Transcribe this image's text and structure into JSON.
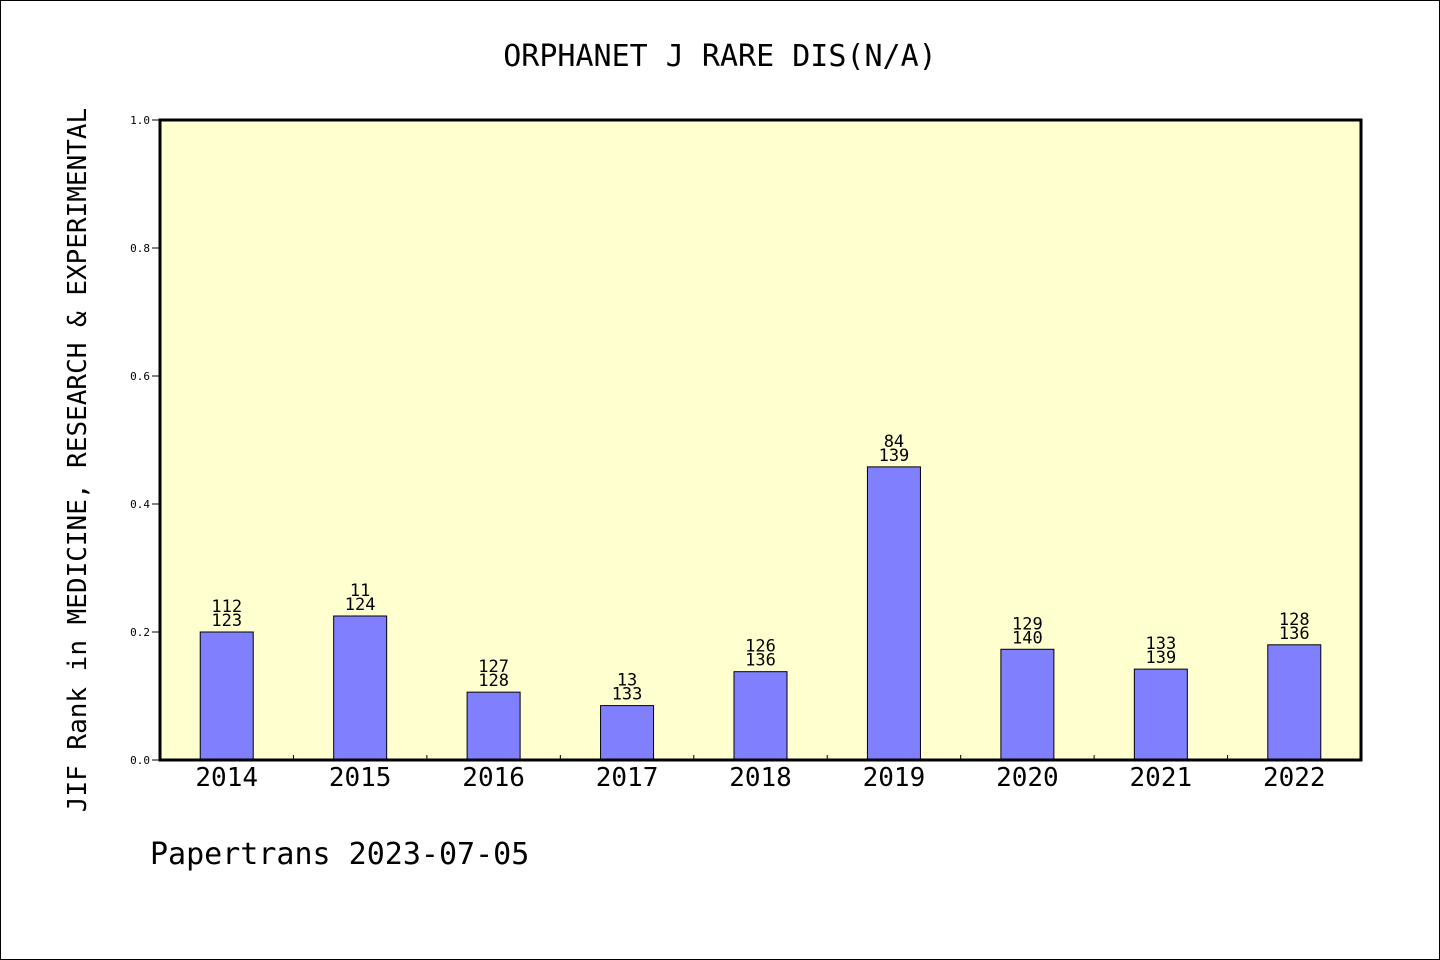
{
  "chart_data": {
    "type": "bar",
    "title": "ORPHANET J RARE DIS(N/A)",
    "ylabel": "JIF Rank in MEDICINE, RESEARCH & EXPERIMENTAL",
    "xlabel": "",
    "categories": [
      "2014",
      "2015",
      "2016",
      "2017",
      "2018",
      "2019",
      "2020",
      "2021",
      "2022"
    ],
    "values": [
      0.2,
      0.225,
      0.106,
      0.085,
      0.138,
      0.458,
      0.173,
      0.142,
      0.18
    ],
    "data_labels": [
      [
        "112",
        "123"
      ],
      [
        "11",
        "124"
      ],
      [
        "127",
        "128"
      ],
      [
        "13",
        "133"
      ],
      [
        "126",
        "136"
      ],
      [
        "84",
        "139"
      ],
      [
        "129",
        "140"
      ],
      [
        "133",
        "139"
      ],
      [
        "128",
        "136"
      ]
    ],
    "ylim": [
      0,
      1.0
    ],
    "yticks": [
      "0.0",
      "0.2",
      "0.4",
      "0.6",
      "0.8",
      "1.0"
    ],
    "grid": false,
    "colors": {
      "bar": "#8080ff",
      "plot_background": "#ffffd0",
      "axes": "#000000"
    }
  },
  "footer": "Papertrans 2023-07-05"
}
